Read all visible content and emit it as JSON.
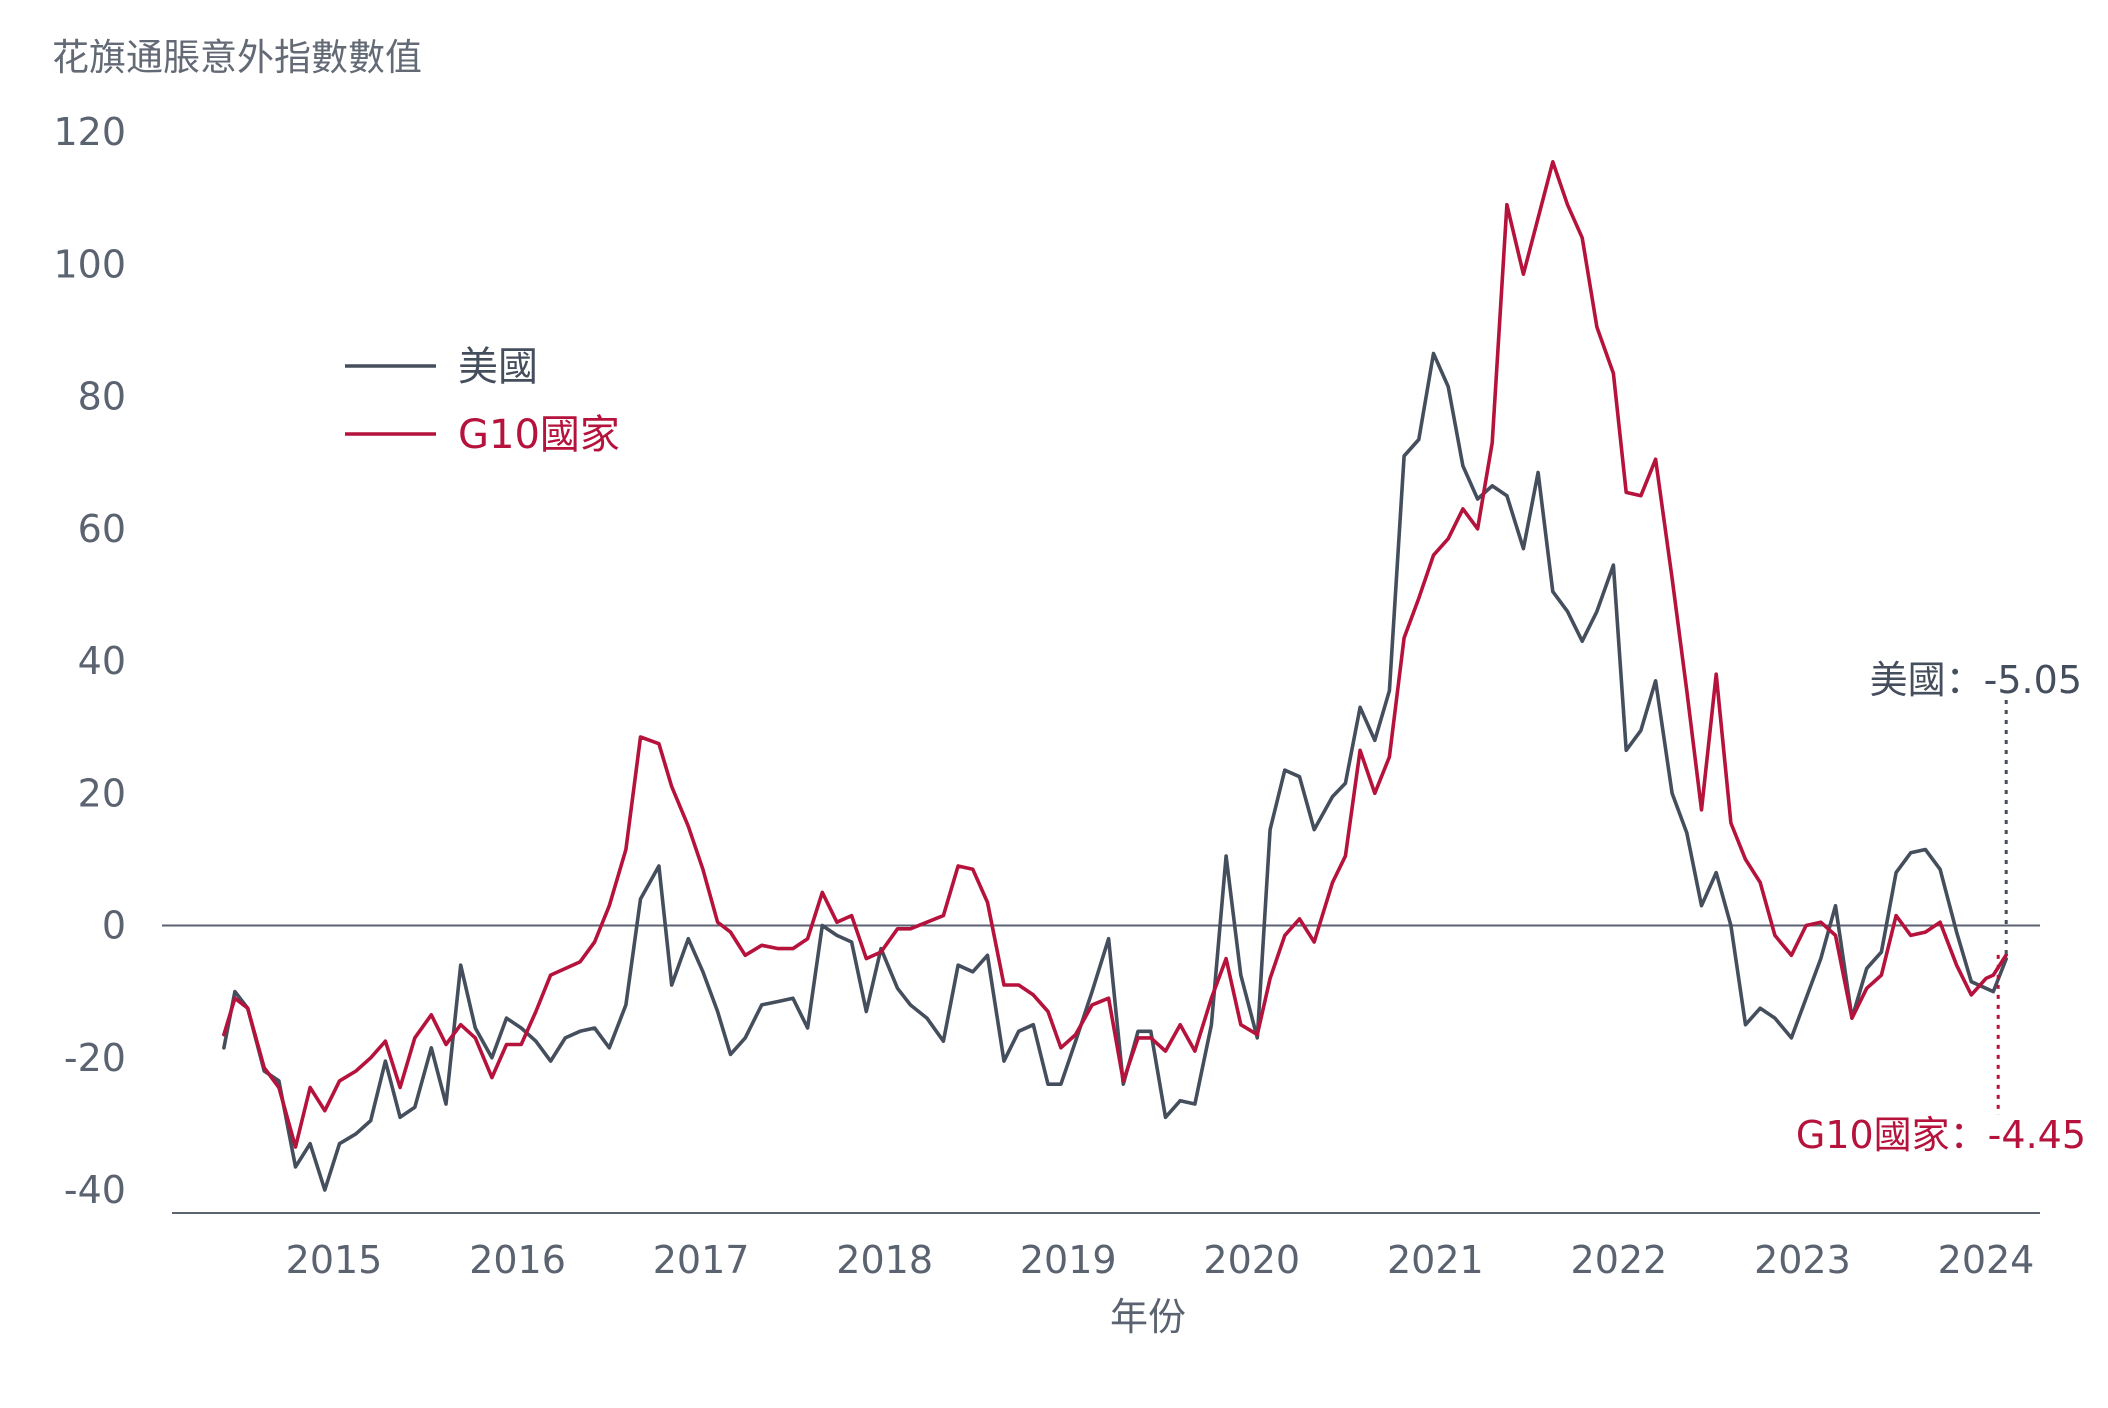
{
  "chart_data": {
    "type": "line",
    "title": "",
    "ylabel": "花旗通脹意外指數數值",
    "xlabel": "年份",
    "ylim": [
      -40,
      120
    ],
    "yticks": [
      120,
      100,
      80,
      60,
      40,
      20,
      0,
      -20,
      -40
    ],
    "xlim": [
      2014.3,
      2024.6
    ],
    "xticks": [
      2015,
      2016,
      2017,
      2018,
      2019,
      2020,
      2021,
      2022,
      2023,
      2024
    ],
    "grid": false,
    "zero_line": true,
    "legend_position": "top-left",
    "series": [
      {
        "name": "美國",
        "color": "#454e5c",
        "points": [
          [
            2014.4,
            -18.5
          ],
          [
            2014.46,
            -10
          ],
          [
            2014.53,
            -12.5
          ],
          [
            2014.62,
            -22
          ],
          [
            2014.7,
            -23.5
          ],
          [
            2014.79,
            -36.5
          ],
          [
            2014.87,
            -33
          ],
          [
            2014.95,
            -40
          ],
          [
            2015.03,
            -33
          ],
          [
            2015.12,
            -31.5
          ],
          [
            2015.2,
            -29.5
          ],
          [
            2015.28,
            -20.5
          ],
          [
            2015.36,
            -29
          ],
          [
            2015.44,
            -27.5
          ],
          [
            2015.53,
            -18.5
          ],
          [
            2015.61,
            -27
          ],
          [
            2015.69,
            -6
          ],
          [
            2015.77,
            -15.5
          ],
          [
            2015.86,
            -20
          ],
          [
            2015.94,
            -14
          ],
          [
            2016.02,
            -15.5
          ],
          [
            2016.1,
            -17.5
          ],
          [
            2016.18,
            -20.5
          ],
          [
            2016.26,
            -17
          ],
          [
            2016.34,
            -16
          ],
          [
            2016.42,
            -15.5
          ],
          [
            2016.5,
            -18.5
          ],
          [
            2016.59,
            -12
          ],
          [
            2016.67,
            4
          ],
          [
            2016.77,
            9
          ],
          [
            2016.84,
            -9
          ],
          [
            2016.93,
            -2
          ],
          [
            2017.01,
            -7
          ],
          [
            2017.09,
            -13
          ],
          [
            2017.16,
            -19.5
          ],
          [
            2017.24,
            -17
          ],
          [
            2017.33,
            -12
          ],
          [
            2017.42,
            -11.5
          ],
          [
            2017.5,
            -11
          ],
          [
            2017.58,
            -15.5
          ],
          [
            2017.66,
            0
          ],
          [
            2017.74,
            -1.5
          ],
          [
            2017.82,
            -2.5
          ],
          [
            2017.9,
            -13
          ],
          [
            2017.98,
            -3.5
          ],
          [
            2018.07,
            -9.5
          ],
          [
            2018.14,
            -12
          ],
          [
            2018.23,
            -14
          ],
          [
            2018.32,
            -17.5
          ],
          [
            2018.4,
            -6
          ],
          [
            2018.48,
            -7
          ],
          [
            2018.56,
            -4.5
          ],
          [
            2018.65,
            -20.5
          ],
          [
            2018.73,
            -16
          ],
          [
            2018.81,
            -15
          ],
          [
            2018.89,
            -24
          ],
          [
            2018.96,
            -24
          ],
          [
            2019.04,
            -17.5
          ],
          [
            2019.13,
            -10
          ],
          [
            2019.22,
            -2
          ],
          [
            2019.3,
            -24
          ],
          [
            2019.38,
            -16
          ],
          [
            2019.45,
            -16
          ],
          [
            2019.53,
            -29
          ],
          [
            2019.61,
            -26.5
          ],
          [
            2019.69,
            -27
          ],
          [
            2019.78,
            -15
          ],
          [
            2019.86,
            10.5
          ],
          [
            2019.94,
            -7.5
          ],
          [
            2020.03,
            -17
          ],
          [
            2020.1,
            14.5
          ],
          [
            2020.18,
            23.5
          ],
          [
            2020.26,
            22.5
          ],
          [
            2020.34,
            14.5
          ],
          [
            2020.44,
            19.5
          ],
          [
            2020.51,
            21.5
          ],
          [
            2020.59,
            33
          ],
          [
            2020.67,
            28
          ],
          [
            2020.75,
            35.5
          ],
          [
            2020.83,
            71
          ],
          [
            2020.91,
            73.5
          ],
          [
            2020.99,
            86.5
          ],
          [
            2021.07,
            81.5
          ],
          [
            2021.15,
            69.5
          ],
          [
            2021.23,
            64.5
          ],
          [
            2021.31,
            66.5
          ],
          [
            2021.39,
            65
          ],
          [
            2021.48,
            57
          ],
          [
            2021.56,
            68.5
          ],
          [
            2021.64,
            50.5
          ],
          [
            2021.72,
            47.5
          ],
          [
            2021.8,
            43
          ],
          [
            2021.88,
            47.5
          ],
          [
            2021.97,
            54.5
          ],
          [
            2022.04,
            26.5
          ],
          [
            2022.12,
            29.5
          ],
          [
            2022.2,
            37
          ],
          [
            2022.29,
            20
          ],
          [
            2022.37,
            14
          ],
          [
            2022.45,
            3
          ],
          [
            2022.53,
            8
          ],
          [
            2022.61,
            0
          ],
          [
            2022.69,
            -15
          ],
          [
            2022.77,
            -12.5
          ],
          [
            2022.85,
            -14
          ],
          [
            2022.94,
            -17
          ],
          [
            2023.02,
            -11
          ],
          [
            2023.1,
            -5
          ],
          [
            2023.18,
            3
          ],
          [
            2023.27,
            -14
          ],
          [
            2023.35,
            -6.5
          ],
          [
            2023.43,
            -4
          ],
          [
            2023.51,
            8
          ],
          [
            2023.59,
            11
          ],
          [
            2023.67,
            11.5
          ],
          [
            2023.75,
            8.5
          ],
          [
            2023.84,
            -1
          ],
          [
            2023.92,
            -8.5
          ],
          [
            2024.0,
            -9.5
          ],
          [
            2024.04,
            -10
          ],
          [
            2024.11,
            -5.05
          ]
        ]
      },
      {
        "name": "G10國家",
        "color": "#b5123c",
        "points": [
          [
            2014.4,
            -16.5
          ],
          [
            2014.46,
            -11
          ],
          [
            2014.53,
            -12.5
          ],
          [
            2014.62,
            -21.5
          ],
          [
            2014.7,
            -24.5
          ],
          [
            2014.79,
            -33.5
          ],
          [
            2014.87,
            -24.5
          ],
          [
            2014.95,
            -28
          ],
          [
            2015.03,
            -23.5
          ],
          [
            2015.12,
            -22
          ],
          [
            2015.2,
            -20
          ],
          [
            2015.28,
            -17.5
          ],
          [
            2015.36,
            -24.5
          ],
          [
            2015.44,
            -17
          ],
          [
            2015.53,
            -13.5
          ],
          [
            2015.61,
            -18
          ],
          [
            2015.69,
            -15
          ],
          [
            2015.77,
            -17
          ],
          [
            2015.86,
            -23
          ],
          [
            2015.94,
            -18
          ],
          [
            2016.02,
            -18
          ],
          [
            2016.1,
            -13
          ],
          [
            2016.18,
            -7.5
          ],
          [
            2016.26,
            -6.5
          ],
          [
            2016.34,
            -5.5
          ],
          [
            2016.42,
            -2.5
          ],
          [
            2016.5,
            3
          ],
          [
            2016.59,
            11.5
          ],
          [
            2016.67,
            28.5
          ],
          [
            2016.77,
            27.5
          ],
          [
            2016.84,
            21
          ],
          [
            2016.93,
            15
          ],
          [
            2017.01,
            8.5
          ],
          [
            2017.09,
            0.5
          ],
          [
            2017.16,
            -1
          ],
          [
            2017.24,
            -4.5
          ],
          [
            2017.33,
            -3
          ],
          [
            2017.42,
            -3.5
          ],
          [
            2017.5,
            -3.5
          ],
          [
            2017.58,
            -2
          ],
          [
            2017.66,
            5
          ],
          [
            2017.74,
            0.5
          ],
          [
            2017.82,
            1.5
          ],
          [
            2017.9,
            -5
          ],
          [
            2017.98,
            -4
          ],
          [
            2018.07,
            -0.5
          ],
          [
            2018.14,
            -0.5
          ],
          [
            2018.23,
            0.5
          ],
          [
            2018.32,
            1.5
          ],
          [
            2018.4,
            9
          ],
          [
            2018.48,
            8.5
          ],
          [
            2018.56,
            3.5
          ],
          [
            2018.65,
            -9
          ],
          [
            2018.73,
            -9
          ],
          [
            2018.81,
            -10.5
          ],
          [
            2018.89,
            -13
          ],
          [
            2018.96,
            -18.5
          ],
          [
            2019.04,
            -16.5
          ],
          [
            2019.13,
            -12
          ],
          [
            2019.22,
            -11
          ],
          [
            2019.3,
            -23.5
          ],
          [
            2019.38,
            -17
          ],
          [
            2019.45,
            -17
          ],
          [
            2019.53,
            -19
          ],
          [
            2019.61,
            -15
          ],
          [
            2019.69,
            -19
          ],
          [
            2019.78,
            -11
          ],
          [
            2019.86,
            -5
          ],
          [
            2019.94,
            -15
          ],
          [
            2020.03,
            -16.5
          ],
          [
            2020.1,
            -8
          ],
          [
            2020.18,
            -1.5
          ],
          [
            2020.26,
            1
          ],
          [
            2020.34,
            -2.5
          ],
          [
            2020.44,
            6.5
          ],
          [
            2020.51,
            10.5
          ],
          [
            2020.59,
            26.5
          ],
          [
            2020.67,
            20
          ],
          [
            2020.75,
            25.5
          ],
          [
            2020.83,
            43.5
          ],
          [
            2020.91,
            49.5
          ],
          [
            2020.99,
            56
          ],
          [
            2021.07,
            58.5
          ],
          [
            2021.15,
            63
          ],
          [
            2021.23,
            60
          ],
          [
            2021.31,
            73
          ],
          [
            2021.39,
            109
          ],
          [
            2021.48,
            98.5
          ],
          [
            2021.56,
            107
          ],
          [
            2021.64,
            115.5
          ],
          [
            2021.72,
            109
          ],
          [
            2021.8,
            104
          ],
          [
            2021.88,
            90.5
          ],
          [
            2021.97,
            83.5
          ],
          [
            2022.04,
            65.5
          ],
          [
            2022.12,
            65
          ],
          [
            2022.2,
            70.5
          ],
          [
            2022.29,
            52.5
          ],
          [
            2022.37,
            35.5
          ],
          [
            2022.45,
            17.5
          ],
          [
            2022.53,
            38
          ],
          [
            2022.61,
            15.5
          ],
          [
            2022.69,
            10
          ],
          [
            2022.77,
            6.5
          ],
          [
            2022.85,
            -1.5
          ],
          [
            2022.94,
            -4.5
          ],
          [
            2023.02,
            0
          ],
          [
            2023.1,
            0.5
          ],
          [
            2023.18,
            -1.5
          ],
          [
            2023.27,
            -14
          ],
          [
            2023.35,
            -9.5
          ],
          [
            2023.43,
            -7.5
          ],
          [
            2023.51,
            1.5
          ],
          [
            2023.59,
            -1.5
          ],
          [
            2023.67,
            -1
          ],
          [
            2023.75,
            0.5
          ],
          [
            2023.84,
            -6
          ],
          [
            2023.92,
            -10.5
          ],
          [
            2024.0,
            -8
          ],
          [
            2024.04,
            -7.5
          ],
          [
            2024.11,
            -4.45
          ]
        ]
      }
    ],
    "annotations": [
      {
        "series": "美國",
        "text": "美國：-5.05",
        "color": "#454e5c"
      },
      {
        "series": "G10國家",
        "text": "G10國家：-4.45",
        "color": "#b5123c"
      }
    ]
  }
}
